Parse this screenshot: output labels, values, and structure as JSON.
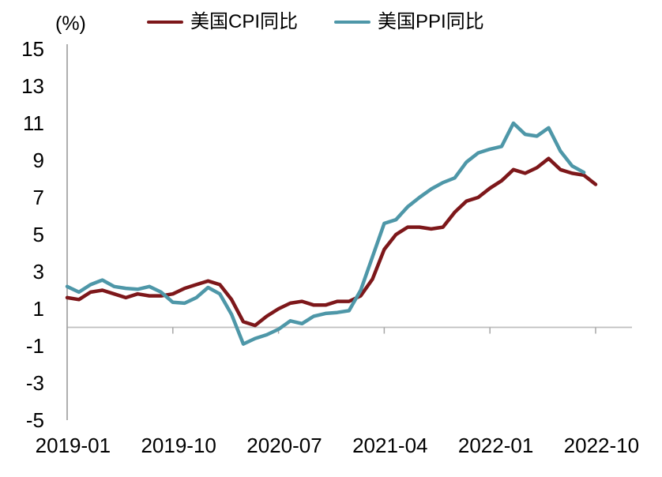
{
  "chart_data": {
    "type": "line",
    "unit_label": "(%)",
    "legend_position": "top-center",
    "grid": "zero-line-only",
    "ylim": [
      -5,
      15
    ],
    "y_ticks": [
      15,
      13,
      11,
      9,
      7,
      5,
      3,
      1,
      -1,
      -3,
      -5
    ],
    "x_tick_labels": [
      "2019-01",
      "2019-10",
      "2020-07",
      "2021-04",
      "2022-01",
      "2022-10"
    ],
    "x": [
      "2019-01",
      "2019-02",
      "2019-03",
      "2019-04",
      "2019-05",
      "2019-06",
      "2019-07",
      "2019-08",
      "2019-09",
      "2019-10",
      "2019-11",
      "2019-12",
      "2020-01",
      "2020-02",
      "2020-03",
      "2020-04",
      "2020-05",
      "2020-06",
      "2020-07",
      "2020-08",
      "2020-09",
      "2020-10",
      "2020-11",
      "2020-12",
      "2021-01",
      "2021-02",
      "2021-03",
      "2021-04",
      "2021-05",
      "2021-06",
      "2021-07",
      "2021-08",
      "2021-09",
      "2021-10",
      "2021-11",
      "2021-12",
      "2022-01",
      "2022-02",
      "2022-03",
      "2022-04",
      "2022-05",
      "2022-06",
      "2022-07",
      "2022-08",
      "2022-09",
      "2022-10"
    ],
    "series": [
      {
        "name": "美国CPI同比",
        "color": "#7D171A",
        "values": [
          1.6,
          1.5,
          1.9,
          2.0,
          1.8,
          1.6,
          1.8,
          1.7,
          1.7,
          1.8,
          2.1,
          2.3,
          2.5,
          2.3,
          1.5,
          0.3,
          0.1,
          0.6,
          1.0,
          1.3,
          1.4,
          1.2,
          1.2,
          1.4,
          1.4,
          1.7,
          2.6,
          4.2,
          5.0,
          5.4,
          5.4,
          5.3,
          5.4,
          6.2,
          6.8,
          7.0,
          7.5,
          7.9,
          8.5,
          8.3,
          8.6,
          9.1,
          8.5,
          8.3,
          8.2,
          7.7
        ]
      },
      {
        "name": "美国PPI同比",
        "color": "#4E97A8",
        "values": [
          2.2,
          1.9,
          2.3,
          2.55,
          2.2,
          2.1,
          2.05,
          2.2,
          1.9,
          1.35,
          1.3,
          1.6,
          2.15,
          1.8,
          0.7,
          -0.9,
          -0.6,
          -0.4,
          -0.1,
          0.35,
          0.2,
          0.6,
          0.75,
          0.8,
          0.9,
          2.0,
          3.8,
          5.6,
          5.8,
          6.5,
          7.0,
          7.45,
          7.8,
          8.05,
          8.9,
          9.4,
          9.6,
          9.75,
          11.0,
          10.4,
          10.3,
          10.75,
          9.5,
          8.7,
          8.35,
          null
        ]
      }
    ],
    "axis_colors": {
      "axis_line": "#A6A6A6",
      "zero_line": "#BFBFBF",
      "tick": "#A6A6A6"
    }
  }
}
